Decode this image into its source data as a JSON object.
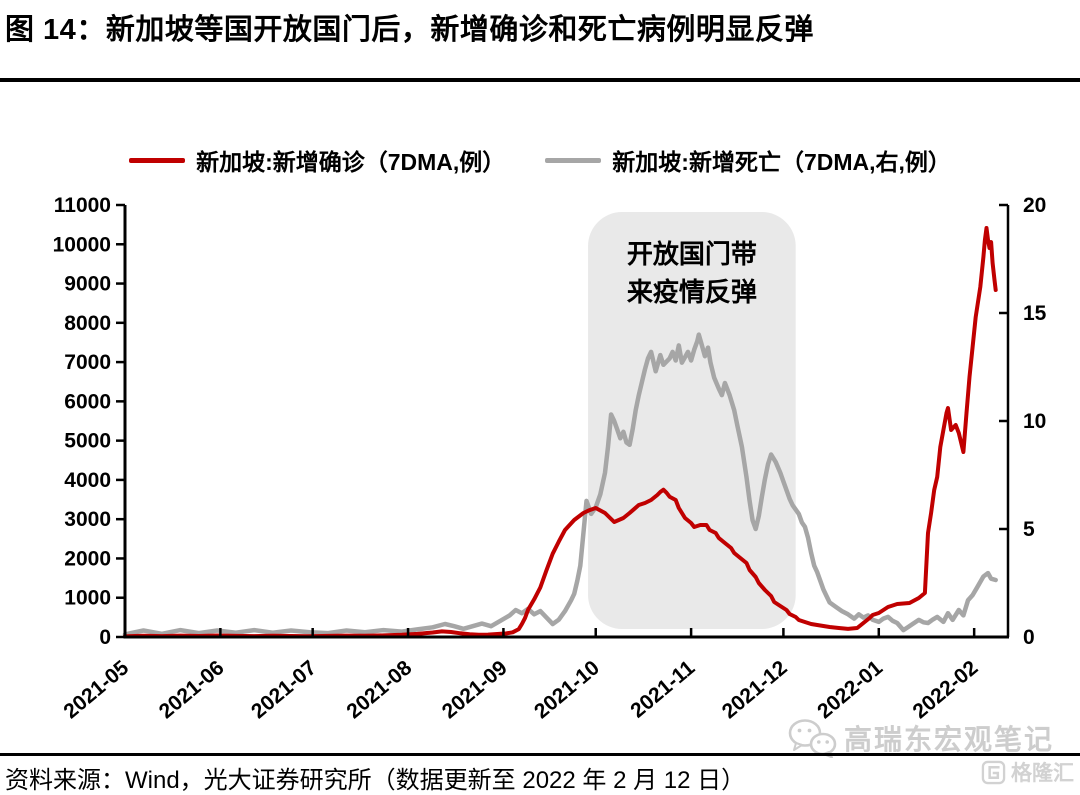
{
  "title": "图 14：新加坡等国开放国门后，新增确诊和死亡病例明显反弹",
  "legend": [
    {
      "label": "新加坡:新增确诊（7DMA,例）",
      "color": "#c00000"
    },
    {
      "label": "新加坡:新增死亡（7DMA,右,例）",
      "color": "#a6a6a6"
    }
  ],
  "source_note": "资料来源：Wind，光大证券研究所（数据更新至 2022 年 2 月 12 日）",
  "watermark": {
    "wechat_name": "高瑞东宏观笔记",
    "platform": "格隆汇"
  },
  "colors": {
    "case_line": "#c00000",
    "death_line": "#a6a6a6",
    "annotation_bg": "#e9e9e9",
    "axis": "#000000",
    "watermark": "#cdcdcd"
  },
  "chart_data": {
    "type": "line",
    "title": "",
    "grid": false,
    "legend_position": "top",
    "x_axis": {
      "unit": "days since 2021-05-01",
      "range": [
        0,
        287
      ],
      "ticks": [
        {
          "day": 0,
          "label": "2021-05"
        },
        {
          "day": 31,
          "label": "2021-06"
        },
        {
          "day": 61,
          "label": "2021-07"
        },
        {
          "day": 92,
          "label": "2021-08"
        },
        {
          "day": 123,
          "label": "2021-09"
        },
        {
          "day": 153,
          "label": "2021-10"
        },
        {
          "day": 184,
          "label": "2021-11"
        },
        {
          "day": 214,
          "label": "2021-12"
        },
        {
          "day": 245,
          "label": "2022-01"
        },
        {
          "day": 276,
          "label": "2022-02"
        }
      ]
    },
    "y_left": {
      "range": [
        0,
        11000
      ],
      "ticks": [
        0,
        1000,
        2000,
        3000,
        4000,
        5000,
        6000,
        7000,
        8000,
        9000,
        10000,
        11000
      ]
    },
    "y_right": {
      "range": [
        0,
        20
      ],
      "ticks": [
        0,
        5,
        10,
        15,
        20
      ]
    },
    "annotation_region": {
      "day_start": 150.5,
      "day_end": 218,
      "label_lines": [
        "开放国门带",
        "来疫情反弹"
      ]
    },
    "series": [
      {
        "name": "新加坡:新增确诊（7DMA,例）",
        "axis": "left",
        "color": "#c00000",
        "width": 4,
        "points": [
          [
            0,
            18
          ],
          [
            6,
            30
          ],
          [
            12,
            22
          ],
          [
            18,
            35
          ],
          [
            24,
            25
          ],
          [
            30,
            38
          ],
          [
            36,
            28
          ],
          [
            42,
            22
          ],
          [
            48,
            30
          ],
          [
            54,
            25
          ],
          [
            60,
            20
          ],
          [
            66,
            28
          ],
          [
            72,
            35
          ],
          [
            78,
            30
          ],
          [
            84,
            40
          ],
          [
            90,
            55
          ],
          [
            95,
            78
          ],
          [
            100,
            115
          ],
          [
            103,
            142
          ],
          [
            106,
            128
          ],
          [
            109,
            95
          ],
          [
            112,
            70
          ],
          [
            115,
            55
          ],
          [
            118,
            62
          ],
          [
            121,
            76
          ],
          [
            124,
            92
          ],
          [
            126,
            120
          ],
          [
            128,
            200
          ],
          [
            129,
            330
          ],
          [
            130,
            480
          ],
          [
            131,
            690
          ],
          [
            133,
            960
          ],
          [
            135,
            1260
          ],
          [
            137,
            1700
          ],
          [
            139,
            2120
          ],
          [
            141,
            2430
          ],
          [
            143,
            2724
          ],
          [
            146,
            2980
          ],
          [
            149,
            3157
          ],
          [
            151,
            3230
          ],
          [
            153,
            3284
          ],
          [
            156,
            3157
          ],
          [
            159,
            2928
          ],
          [
            162,
            3030
          ],
          [
            164,
            3157
          ],
          [
            167,
            3361
          ],
          [
            169,
            3412
          ],
          [
            171,
            3488
          ],
          [
            173,
            3616
          ],
          [
            174,
            3692
          ],
          [
            175,
            3750
          ],
          [
            176,
            3674
          ],
          [
            177,
            3572
          ],
          [
            179,
            3488
          ],
          [
            180,
            3284
          ],
          [
            182,
            3030
          ],
          [
            184,
            2903
          ],
          [
            185,
            2801
          ],
          [
            187,
            2852
          ],
          [
            189,
            2852
          ],
          [
            190,
            2724
          ],
          [
            192,
            2648
          ],
          [
            193,
            2520
          ],
          [
            195,
            2393
          ],
          [
            197,
            2266
          ],
          [
            198,
            2139
          ],
          [
            200,
            2011
          ],
          [
            202,
            1884
          ],
          [
            203,
            1706
          ],
          [
            205,
            1528
          ],
          [
            206,
            1375
          ],
          [
            208,
            1197
          ],
          [
            210,
            1044
          ],
          [
            211,
            891
          ],
          [
            213,
            789
          ],
          [
            215,
            687
          ],
          [
            216,
            585
          ],
          [
            218,
            509
          ],
          [
            219,
            433
          ],
          [
            221,
            382
          ],
          [
            223,
            331
          ],
          [
            225,
            305
          ],
          [
            227,
            280
          ],
          [
            229,
            255
          ],
          [
            232,
            230
          ],
          [
            235,
            205
          ],
          [
            238,
            230
          ],
          [
            240,
            356
          ],
          [
            242,
            484
          ],
          [
            243,
            560
          ],
          [
            245,
            611
          ],
          [
            248,
            764
          ],
          [
            251,
            840
          ],
          [
            255,
            866
          ],
          [
            258,
            993
          ],
          [
            260,
            1120
          ],
          [
            261,
            2648
          ],
          [
            262,
            3157
          ],
          [
            263,
            3743
          ],
          [
            264,
            4074
          ],
          [
            265,
            4838
          ],
          [
            267,
            5703
          ],
          [
            267.5,
            5830
          ],
          [
            268.5,
            5270
          ],
          [
            270,
            5398
          ],
          [
            271,
            5194
          ],
          [
            272.5,
            4711
          ],
          [
            273.5,
            5703
          ],
          [
            274.5,
            6620
          ],
          [
            275.5,
            7384
          ],
          [
            276.5,
            8148
          ],
          [
            278,
            8912
          ],
          [
            279,
            9676
          ],
          [
            279.5,
            10109
          ],
          [
            280,
            10414
          ],
          [
            280.5,
            10109
          ],
          [
            281,
            9905
          ],
          [
            281.5,
            10058
          ],
          [
            282,
            9523
          ],
          [
            282.6,
            9090
          ],
          [
            283,
            8835
          ]
        ]
      },
      {
        "name": "新加坡:新增死亡（7DMA,右,例）",
        "axis": "right",
        "color": "#a6a6a6",
        "width": 4.5,
        "points": [
          [
            0,
            0.12
          ],
          [
            6,
            0.3
          ],
          [
            12,
            0.15
          ],
          [
            18,
            0.32
          ],
          [
            24,
            0.18
          ],
          [
            30,
            0.3
          ],
          [
            36,
            0.2
          ],
          [
            42,
            0.32
          ],
          [
            48,
            0.2
          ],
          [
            54,
            0.3
          ],
          [
            60,
            0.22
          ],
          [
            66,
            0.18
          ],
          [
            72,
            0.3
          ],
          [
            78,
            0.22
          ],
          [
            84,
            0.32
          ],
          [
            90,
            0.25
          ],
          [
            95,
            0.35
          ],
          [
            100,
            0.45
          ],
          [
            104,
            0.6
          ],
          [
            107,
            0.5
          ],
          [
            110,
            0.38
          ],
          [
            113,
            0.5
          ],
          [
            116,
            0.62
          ],
          [
            119,
            0.5
          ],
          [
            122,
            0.75
          ],
          [
            125,
            1.0
          ],
          [
            127,
            1.25
          ],
          [
            129,
            1.1
          ],
          [
            131,
            1.3
          ],
          [
            133,
            1.05
          ],
          [
            135,
            1.2
          ],
          [
            137,
            0.9
          ],
          [
            139,
            0.6
          ],
          [
            141,
            0.8
          ],
          [
            143,
            1.2
          ],
          [
            145,
            1.7
          ],
          [
            146,
            2.0
          ],
          [
            147,
            2.6
          ],
          [
            148,
            3.3
          ],
          [
            149,
            4.8
          ],
          [
            150,
            6.3
          ],
          [
            151.5,
            5.7
          ],
          [
            153,
            6.0
          ],
          [
            154.5,
            6.6
          ],
          [
            156,
            7.6
          ],
          [
            157,
            8.8
          ],
          [
            158,
            10.3
          ],
          [
            159,
            10.0
          ],
          [
            160,
            9.6
          ],
          [
            161,
            9.2
          ],
          [
            162,
            9.5
          ],
          [
            163,
            9.0
          ],
          [
            164,
            8.9
          ],
          [
            165,
            9.6
          ],
          [
            166,
            10.5
          ],
          [
            167,
            11.2
          ],
          [
            168,
            11.8
          ],
          [
            169,
            12.4
          ],
          [
            170,
            12.9
          ],
          [
            171,
            13.2
          ],
          [
            172.5,
            12.3
          ],
          [
            174,
            13.05
          ],
          [
            175,
            12.6
          ],
          [
            177,
            12.9
          ],
          [
            178,
            13.2
          ],
          [
            179,
            12.8
          ],
          [
            180,
            13.5
          ],
          [
            181,
            12.7
          ],
          [
            183,
            13.2
          ],
          [
            184,
            12.8
          ],
          [
            185,
            13.3
          ],
          [
            186,
            13.7
          ],
          [
            186.5,
            14.0
          ],
          [
            187.5,
            13.5
          ],
          [
            188.5,
            13.0
          ],
          [
            189.5,
            13.4
          ],
          [
            190.3,
            12.7
          ],
          [
            191.5,
            12.0
          ],
          [
            193,
            11.5
          ],
          [
            194,
            11.2
          ],
          [
            195,
            11.76
          ],
          [
            196.5,
            11.2
          ],
          [
            198,
            10.5
          ],
          [
            199,
            9.8
          ],
          [
            200.5,
            8.8
          ],
          [
            202,
            7.4
          ],
          [
            203,
            6.3
          ],
          [
            204,
            5.4
          ],
          [
            205,
            5.0
          ],
          [
            206,
            5.6
          ],
          [
            207,
            6.5
          ],
          [
            208,
            7.3
          ],
          [
            209,
            8.0
          ],
          [
            210,
            8.45
          ],
          [
            211.5,
            8.1
          ],
          [
            213,
            7.6
          ],
          [
            214,
            7.2
          ],
          [
            215,
            6.8
          ],
          [
            216,
            6.4
          ],
          [
            217,
            6.1
          ],
          [
            218,
            5.9
          ],
          [
            219,
            5.7
          ],
          [
            220,
            5.3
          ],
          [
            221,
            5.1
          ],
          [
            222,
            4.6
          ],
          [
            223,
            3.9
          ],
          [
            224,
            3.3
          ],
          [
            225,
            3.0
          ],
          [
            226,
            2.6
          ],
          [
            227,
            2.2
          ],
          [
            228,
            1.9
          ],
          [
            229,
            1.6
          ],
          [
            231,
            1.4
          ],
          [
            233,
            1.2
          ],
          [
            235,
            1.05
          ],
          [
            237,
            0.85
          ],
          [
            238.5,
            1.05
          ],
          [
            240,
            0.9
          ],
          [
            241.5,
            1.0
          ],
          [
            243,
            0.8
          ],
          [
            245,
            0.7
          ],
          [
            246.5,
            0.85
          ],
          [
            248,
            0.93
          ],
          [
            249.5,
            0.75
          ],
          [
            251,
            0.65
          ],
          [
            253,
            0.32
          ],
          [
            254.5,
            0.46
          ],
          [
            256,
            0.6
          ],
          [
            258,
            0.79
          ],
          [
            259.5,
            0.68
          ],
          [
            261,
            0.65
          ],
          [
            262.5,
            0.8
          ],
          [
            264,
            0.93
          ],
          [
            266,
            0.7
          ],
          [
            267.5,
            1.1
          ],
          [
            269,
            0.79
          ],
          [
            271,
            1.25
          ],
          [
            272.5,
            1.0
          ],
          [
            274,
            1.7
          ],
          [
            275.5,
            1.94
          ],
          [
            277,
            2.3
          ],
          [
            279,
            2.8
          ],
          [
            280.5,
            2.96
          ],
          [
            281.5,
            2.7
          ],
          [
            283,
            2.64
          ]
        ]
      }
    ]
  }
}
